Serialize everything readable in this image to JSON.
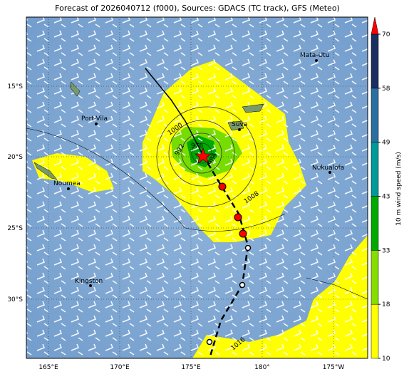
{
  "map": {
    "title": "Forecast of 2026040712 (f000), Sources: GDACS (TC track), GFS (Meteo)",
    "lat_labels": [
      "15°S",
      "20°S",
      "25°S",
      "30°S"
    ],
    "lon_labels": [
      "165°E",
      "170°E",
      "175°E",
      "180°",
      "175°W"
    ],
    "places": [
      "Mata-Utu",
      "Port-Vila",
      "Suva",
      "Noumea",
      "Nukualofa",
      "Kingston"
    ],
    "isobar_labels": [
      "1000",
      "992",
      "976",
      "984",
      "1008",
      "1016"
    ],
    "colorbar": {
      "label": "10 m wind speed (m/s)",
      "ticks": [
        10,
        18,
        33,
        43,
        49,
        58,
        70
      ]
    }
  }
}
